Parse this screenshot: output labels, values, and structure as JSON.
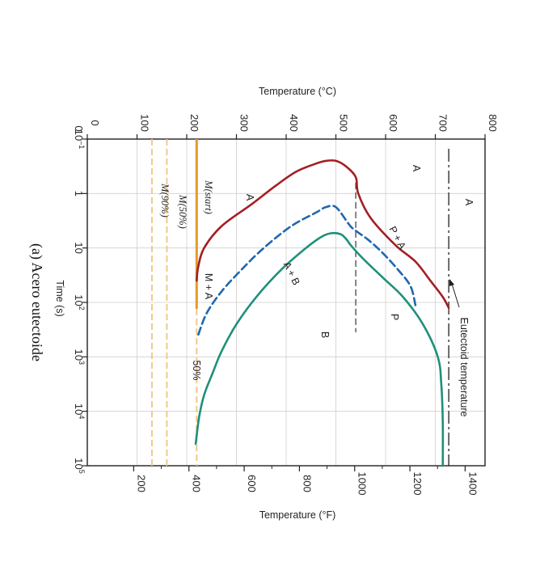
{
  "chart_data": {
    "type": "line",
    "title": "",
    "caption": "(a) Acero eutectoide",
    "xlabel": "Time (s)",
    "ylabel_left": "Temperature (°C)",
    "ylabel_right": "Temperature (°F)",
    "x_scale": "log",
    "x_range_log10": [
      -1,
      5
    ],
    "x_ticks": [
      {
        "log": -1,
        "base": "10",
        "exp": "–1"
      },
      {
        "log": 0,
        "base": "1",
        "exp": ""
      },
      {
        "log": 1,
        "base": "10",
        "exp": ""
      },
      {
        "log": 2,
        "base": "10",
        "exp": "2"
      },
      {
        "log": 3,
        "base": "10",
        "exp": "3"
      },
      {
        "log": 4,
        "base": "10",
        "exp": "4"
      },
      {
        "log": 5,
        "base": "10",
        "exp": "5"
      }
    ],
    "y_range_C": [
      0,
      800
    ],
    "y_ticks_C": [
      0,
      100,
      200,
      300,
      400,
      500,
      600,
      700,
      800
    ],
    "y_ticks_F": [
      200,
      400,
      600,
      800,
      1000,
      1200,
      1400
    ],
    "grid": true,
    "series": [
      {
        "key": "start",
        "color": "#a31f24",
        "style": "solid",
        "points": [
          [
            2.1,
            727
          ],
          [
            1.9,
            715
          ],
          [
            1.6,
            690
          ],
          [
            1.25,
            660
          ],
          [
            0.95,
            620
          ],
          [
            0.45,
            570
          ],
          [
            0.0,
            545
          ],
          [
            -0.3,
            540
          ],
          [
            -0.5,
            520
          ],
          [
            -0.6,
            500
          ],
          [
            -0.6,
            480
          ],
          [
            -0.55,
            460
          ],
          [
            -0.4,
            420
          ],
          [
            -0.15,
            380
          ],
          [
            0.2,
            330
          ],
          [
            0.6,
            270
          ],
          [
            1.0,
            235
          ],
          [
            1.35,
            223
          ],
          [
            1.6,
            220
          ]
        ]
      },
      {
        "key": "50%",
        "color": "#2067b0",
        "style": "dashed",
        "points": [
          [
            2.05,
            660
          ],
          [
            1.7,
            650
          ],
          [
            1.4,
            625
          ],
          [
            1.1,
            595
          ],
          [
            0.85,
            565
          ],
          [
            0.65,
            535
          ],
          [
            0.55,
            525
          ],
          [
            0.25,
            500
          ],
          [
            0.25,
            480
          ],
          [
            0.35,
            460
          ],
          [
            0.6,
            410
          ],
          [
            1.0,
            355
          ],
          [
            1.4,
            310
          ],
          [
            1.8,
            270
          ],
          [
            2.2,
            240
          ],
          [
            2.6,
            223
          ]
        ]
      },
      {
        "key": "end",
        "color": "#1f9079",
        "style": "solid",
        "points": [
          [
            5.0,
            715
          ],
          [
            4.2,
            715
          ],
          [
            3.5,
            712
          ],
          [
            3.0,
            705
          ],
          [
            2.4,
            675
          ],
          [
            1.9,
            635
          ],
          [
            1.55,
            595
          ],
          [
            1.2,
            555
          ],
          [
            0.95,
            530
          ],
          [
            0.85,
            522
          ],
          [
            0.75,
            510
          ],
          [
            0.73,
            490
          ],
          [
            0.8,
            470
          ],
          [
            1.0,
            440
          ],
          [
            1.4,
            390
          ],
          [
            1.9,
            340
          ],
          [
            2.4,
            300
          ],
          [
            2.9,
            270
          ],
          [
            3.3,
            252
          ],
          [
            3.7,
            235
          ],
          [
            4.1,
            225
          ],
          [
            4.6,
            218
          ]
        ]
      }
    ],
    "eutectoid_C": 727,
    "mstart_C": 220,
    "m50_C": 160,
    "m90_C": 130,
    "labels": {
      "austenite_top": "A",
      "austenite_mid": "A",
      "eutectoid": "Eutectoid temperature",
      "austenite_upper": "A",
      "pearlite": "P",
      "p_plus_a": "P + A",
      "bainite": "B",
      "a_plus_b": "A + B",
      "mstart": "M(start)",
      "m50": "M(50%)",
      "m90": "M(90%)",
      "m_plus_a": "M + A",
      "fifty_percent": "50%"
    }
  }
}
